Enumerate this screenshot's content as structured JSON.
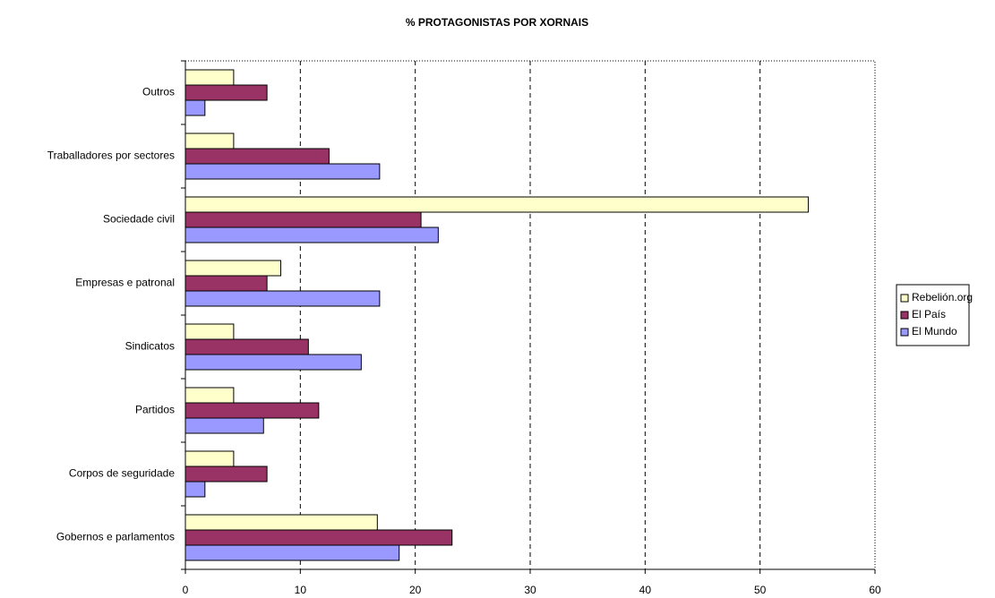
{
  "chart_data": {
    "type": "barh",
    "title": "% PROTAGONISTAS POR XORNAIS",
    "categories": [
      "Gobernos e parlamentos",
      "Corpos de seguridade",
      "Partidos",
      "Sindicatos",
      "Empresas e patronal",
      "Sociedade civil",
      "Traballadores por sectores",
      "Outros"
    ],
    "series": [
      {
        "name": "Rebelión.org",
        "color": "#ffffcc",
        "values": [
          16.7,
          4.2,
          4.2,
          4.2,
          8.3,
          54.2,
          4.2,
          4.2
        ]
      },
      {
        "name": "El País",
        "color": "#993366",
        "values": [
          23.2,
          7.1,
          11.6,
          10.7,
          7.1,
          20.5,
          12.5,
          7.1
        ]
      },
      {
        "name": "El Mundo",
        "color": "#9999ff",
        "values": [
          18.6,
          1.7,
          6.8,
          15.3,
          16.9,
          22.0,
          16.9,
          1.7
        ]
      }
    ],
    "xlim": [
      0,
      60
    ],
    "xticks": [
      0,
      10,
      20,
      30,
      40,
      50,
      60
    ],
    "grid": true,
    "legend": "right"
  }
}
